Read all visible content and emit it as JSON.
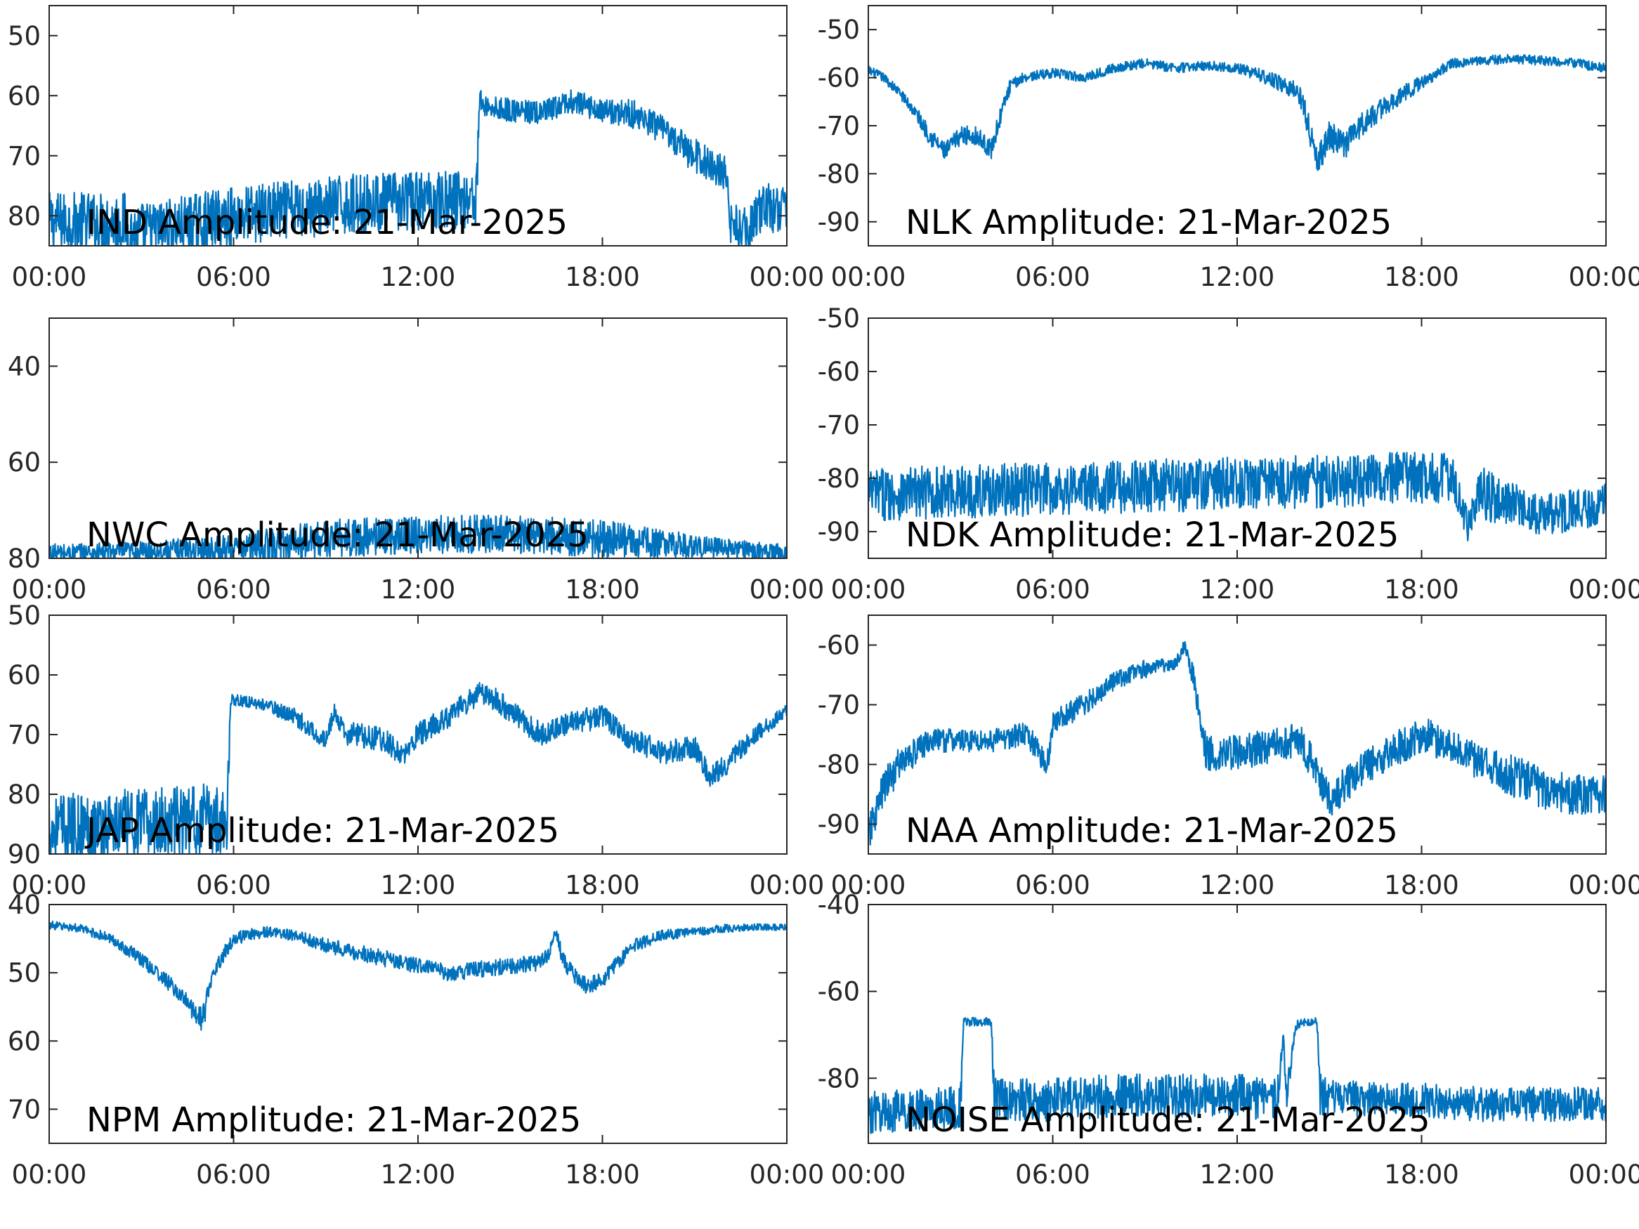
{
  "colors": {
    "trace": "#0072bd",
    "axis": "#262626",
    "background": "#ffffff"
  },
  "chart_data": [
    {
      "type": "line",
      "title": "IND Amplitude: 21-Mar-2025",
      "xlabel": "",
      "ylabel": "",
      "xticks": [
        "00:00",
        "06:00",
        "12:00",
        "18:00",
        "00:00"
      ],
      "xlim": [
        0,
        24
      ],
      "ylim": [
        -85,
        -45
      ],
      "yticks": [
        -50,
        -60,
        -70,
        -80
      ],
      "ytick_labels": [
        "50",
        "60",
        "70",
        "80"
      ],
      "series": [
        {
          "x": [
            0,
            2.5,
            2.5,
            4,
            6,
            8,
            10,
            12,
            13.9,
            14,
            14.3,
            16,
            17,
            18,
            19,
            20,
            21,
            22,
            22.2,
            22.8,
            23.3,
            23.5,
            24
          ],
          "y": [
            -81,
            -81,
            -83,
            -82,
            -80,
            -79,
            -78,
            -77.5,
            -77,
            -61,
            -62,
            -63,
            -61,
            -62.5,
            -63,
            -66,
            -70,
            -73,
            -82,
            -82,
            -78,
            -79,
            -78
          ],
          "noise": [
            5,
            5,
            5,
            5,
            5,
            5,
            5,
            5,
            5,
            2,
            2,
            2,
            2,
            2,
            2.5,
            2.5,
            3,
            3,
            4,
            4,
            4,
            4,
            4
          ]
        }
      ],
      "grid": false
    },
    {
      "type": "line",
      "title": "NLK Amplitude: 21-Mar-2025",
      "xlabel": "",
      "ylabel": "",
      "xticks": [
        "00:00",
        "06:00",
        "12:00",
        "18:00",
        "00:00"
      ],
      "xlim": [
        0,
        24
      ],
      "ylim": [
        -95,
        -45
      ],
      "yticks": [
        -50,
        -60,
        -70,
        -80,
        -90
      ],
      "ytick_labels": [
        "-50",
        "-60",
        "-70",
        "-80",
        "-90"
      ],
      "series": [
        {
          "x": [
            0,
            0.5,
            1,
            1.5,
            2,
            2.5,
            3,
            3.5,
            4,
            4.3,
            4.6,
            5,
            6,
            7,
            8,
            9,
            10,
            11,
            12,
            13,
            14,
            14.3,
            14.6,
            15,
            15.5,
            16,
            17,
            18,
            19,
            20,
            21,
            22,
            23,
            24
          ],
          "y": [
            -58.5,
            -60,
            -63,
            -67,
            -72,
            -75.5,
            -72,
            -72,
            -75,
            -68,
            -62,
            -60,
            -59,
            -60,
            -58,
            -57,
            -58,
            -57.5,
            -58,
            -60,
            -63,
            -69,
            -78,
            -72,
            -74,
            -70,
            -65,
            -61,
            -57,
            -56.5,
            -56,
            -56.5,
            -57,
            -58
          ],
          "noise": [
            1,
            1,
            1,
            1.5,
            2,
            2,
            2,
            2,
            2,
            2,
            1.5,
            1,
            1,
            1,
            1,
            1,
            1,
            1,
            1,
            1.5,
            2,
            3,
            3,
            3,
            3,
            2.5,
            2,
            1.5,
            1,
            1,
            1,
            1,
            1,
            1
          ]
        }
      ],
      "grid": false
    },
    {
      "type": "line",
      "title": "NWC Amplitude: 21-Mar-2025",
      "xlabel": "",
      "ylabel": "",
      "xticks": [
        "00:00",
        "06:00",
        "12:00",
        "18:00",
        "00:00"
      ],
      "xlim": [
        0,
        24
      ],
      "ylim": [
        -80,
        -30
      ],
      "yticks": [
        -40,
        -60,
        -80
      ],
      "ytick_labels": [
        "40",
        "60",
        "80"
      ],
      "series": [
        {
          "x": [
            0,
            3,
            6,
            9,
            12,
            15,
            18,
            20,
            22,
            24
          ],
          "y": [
            -79,
            -78.5,
            -78,
            -76,
            -75,
            -75,
            -76,
            -77,
            -78,
            -79
          ],
          "noise": [
            2,
            2,
            3,
            4,
            4,
            4,
            4,
            3,
            2,
            2
          ]
        }
      ],
      "grid": false
    },
    {
      "type": "line",
      "title": "NDK Amplitude: 21-Mar-2025",
      "xlabel": "",
      "ylabel": "",
      "xticks": [
        "00:00",
        "06:00",
        "12:00",
        "18:00",
        "00:00"
      ],
      "xlim": [
        0,
        24
      ],
      "ylim": [
        -95,
        -50
      ],
      "yticks": [
        -50,
        -60,
        -70,
        -80,
        -90
      ],
      "ytick_labels": [
        "-50",
        "-60",
        "-70",
        "-80",
        "-90"
      ],
      "series": [
        {
          "x": [
            0,
            3,
            6,
            9,
            12,
            15,
            18,
            19,
            19.6,
            19.8,
            20,
            21,
            22,
            23,
            24
          ],
          "y": [
            -83,
            -82.5,
            -82,
            -81.5,
            -81,
            -80.5,
            -80,
            -80,
            -89,
            -82,
            -83,
            -85,
            -87,
            -86,
            -85
          ],
          "noise": [
            5,
            5,
            5,
            5,
            5,
            5,
            5,
            5,
            4,
            5,
            5,
            4,
            4,
            4,
            4
          ]
        }
      ],
      "grid": false
    },
    {
      "type": "line",
      "title": "JAP Amplitude: 21-Mar-2025",
      "xlabel": "",
      "ylabel": "",
      "xticks": [
        "00:00",
        "06:00",
        "12:00",
        "18:00",
        "00:00"
      ],
      "xlim": [
        0,
        24
      ],
      "ylim": [
        -90,
        -50
      ],
      "yticks": [
        -50,
        -60,
        -70,
        -80,
        -90
      ],
      "ytick_labels": [
        "50",
        "60",
        "70",
        "80",
        "90"
      ],
      "series": [
        {
          "x": [
            0,
            3,
            5.8,
            5.9,
            7,
            8,
            9,
            9.3,
            9.6,
            10,
            11,
            11.5,
            12,
            13,
            14,
            14.5,
            15,
            16,
            17,
            18,
            18.5,
            19,
            20,
            21,
            21.5,
            22,
            23,
            24
          ],
          "y": [
            -86,
            -85,
            -84,
            -64,
            -65,
            -67,
            -71,
            -66,
            -70,
            -70,
            -71,
            -74,
            -70,
            -67,
            -63,
            -64,
            -66,
            -70,
            -68,
            -67,
            -69,
            -71,
            -73,
            -72,
            -77,
            -75,
            -70,
            -66
          ],
          "noise": [
            6,
            6,
            6,
            1,
            1,
            1.5,
            1.5,
            1.5,
            2,
            2,
            2,
            2,
            2,
            2,
            2,
            2,
            2,
            2,
            2,
            2,
            2,
            2,
            2,
            2,
            2,
            2,
            1.5,
            1
          ]
        }
      ],
      "grid": false
    },
    {
      "type": "line",
      "title": "NAA Amplitude: 21-Mar-2025",
      "xlabel": "",
      "ylabel": "",
      "xticks": [
        "00:00",
        "06:00",
        "12:00",
        "18:00",
        "00:00"
      ],
      "xlim": [
        0,
        24
      ],
      "ylim": [
        -95,
        -55
      ],
      "yticks": [
        -60,
        -70,
        -80,
        -90
      ],
      "ytick_labels": [
        "-60",
        "-70",
        "-80",
        "-90"
      ],
      "series": [
        {
          "x": [
            0,
            0.5,
            1,
            2,
            3,
            4,
            5,
            5.5,
            5.8,
            6,
            7,
            8,
            9,
            10,
            10.3,
            10.6,
            11,
            12,
            13,
            14,
            14.5,
            15,
            16,
            17,
            18,
            19,
            20,
            21,
            22,
            23,
            24
          ],
          "y": [
            -92,
            -84,
            -80,
            -76,
            -76,
            -76,
            -75,
            -77,
            -81,
            -73,
            -70,
            -66,
            -64,
            -63,
            -60,
            -66,
            -78,
            -78,
            -77,
            -76,
            -80,
            -86,
            -81,
            -78,
            -75,
            -77,
            -80,
            -82,
            -84,
            -85,
            -85
          ],
          "noise": [
            3,
            3,
            3,
            2,
            2,
            2,
            2,
            2,
            2,
            2,
            2,
            1.5,
            1.5,
            1,
            1,
            2,
            3,
            3,
            3,
            3,
            3,
            3,
            3,
            3,
            3,
            3,
            3,
            3.5,
            3.5,
            3.5,
            3.5
          ]
        }
      ],
      "grid": false
    },
    {
      "type": "line",
      "title": "NPM Amplitude: 21-Mar-2025",
      "xlabel": "",
      "ylabel": "",
      "xticks": [
        "00:00",
        "06:00",
        "12:00",
        "18:00",
        "00:00"
      ],
      "xlim": [
        0,
        24
      ],
      "ylim": [
        -75,
        -40
      ],
      "yticks": [
        -40,
        -50,
        -60,
        -70
      ],
      "ytick_labels": [
        "40",
        "50",
        "60",
        "70"
      ],
      "series": [
        {
          "x": [
            0,
            1,
            2,
            3,
            4,
            4.8,
            5,
            5.3,
            6,
            7,
            8,
            9,
            10,
            11,
            12,
            13,
            14,
            15,
            16,
            16.3,
            16.5,
            16.7,
            17,
            17.5,
            18,
            19,
            20,
            21,
            22,
            23,
            24
          ],
          "y": [
            -43,
            -43.5,
            -45,
            -48,
            -52,
            -56,
            -57,
            -50,
            -45,
            -44,
            -44.5,
            -46,
            -47,
            -48,
            -49,
            -50,
            -49.5,
            -49,
            -48.5,
            -47,
            -44,
            -48,
            -50,
            -52,
            -51,
            -46,
            -44.5,
            -44,
            -43.5,
            -43.3,
            -43.3
          ],
          "noise": [
            0.6,
            0.6,
            0.8,
            1,
            1.2,
            1.5,
            2,
            1.2,
            1,
            0.8,
            0.8,
            1,
            1.2,
            1.2,
            1.2,
            1.2,
            1.2,
            1.2,
            1.2,
            1.2,
            1,
            1.2,
            1.2,
            1.2,
            1.2,
            1,
            0.8,
            0.6,
            0.6,
            0.5,
            0.5
          ]
        }
      ],
      "grid": false
    },
    {
      "type": "line",
      "title": "NOISE Amplitude: 21-Mar-2025",
      "xlabel": "",
      "ylabel": "",
      "xticks": [
        "00:00",
        "06:00",
        "12:00",
        "18:00",
        "00:00"
      ],
      "xlim": [
        0,
        24
      ],
      "ylim": [
        -95,
        -40
      ],
      "yticks": [
        -40,
        -60,
        -80
      ],
      "ytick_labels": [
        "-40",
        "-60",
        "-80"
      ],
      "series": [
        {
          "x": [
            0,
            2.5,
            3,
            3.1,
            3.6,
            3.8,
            4,
            4.1,
            6,
            8,
            10,
            12,
            13.3,
            13.5,
            13.6,
            13.9,
            14.1,
            14.6,
            14.7,
            16,
            18,
            20,
            22,
            24
          ],
          "y": [
            -88,
            -87,
            -87,
            -67,
            -67,
            -67,
            -67,
            -85,
            -85,
            -84,
            -84,
            -84,
            -85,
            -70,
            -85,
            -68,
            -67,
            -67,
            -84,
            -85,
            -85,
            -86,
            -86,
            -86
          ],
          "noise": [
            5,
            5,
            5,
            1,
            1,
            1,
            1,
            5,
            5,
            5,
            5,
            5,
            5,
            1,
            5,
            1,
            1,
            1,
            5,
            4,
            4,
            4,
            4,
            4
          ]
        }
      ],
      "grid": false
    }
  ]
}
